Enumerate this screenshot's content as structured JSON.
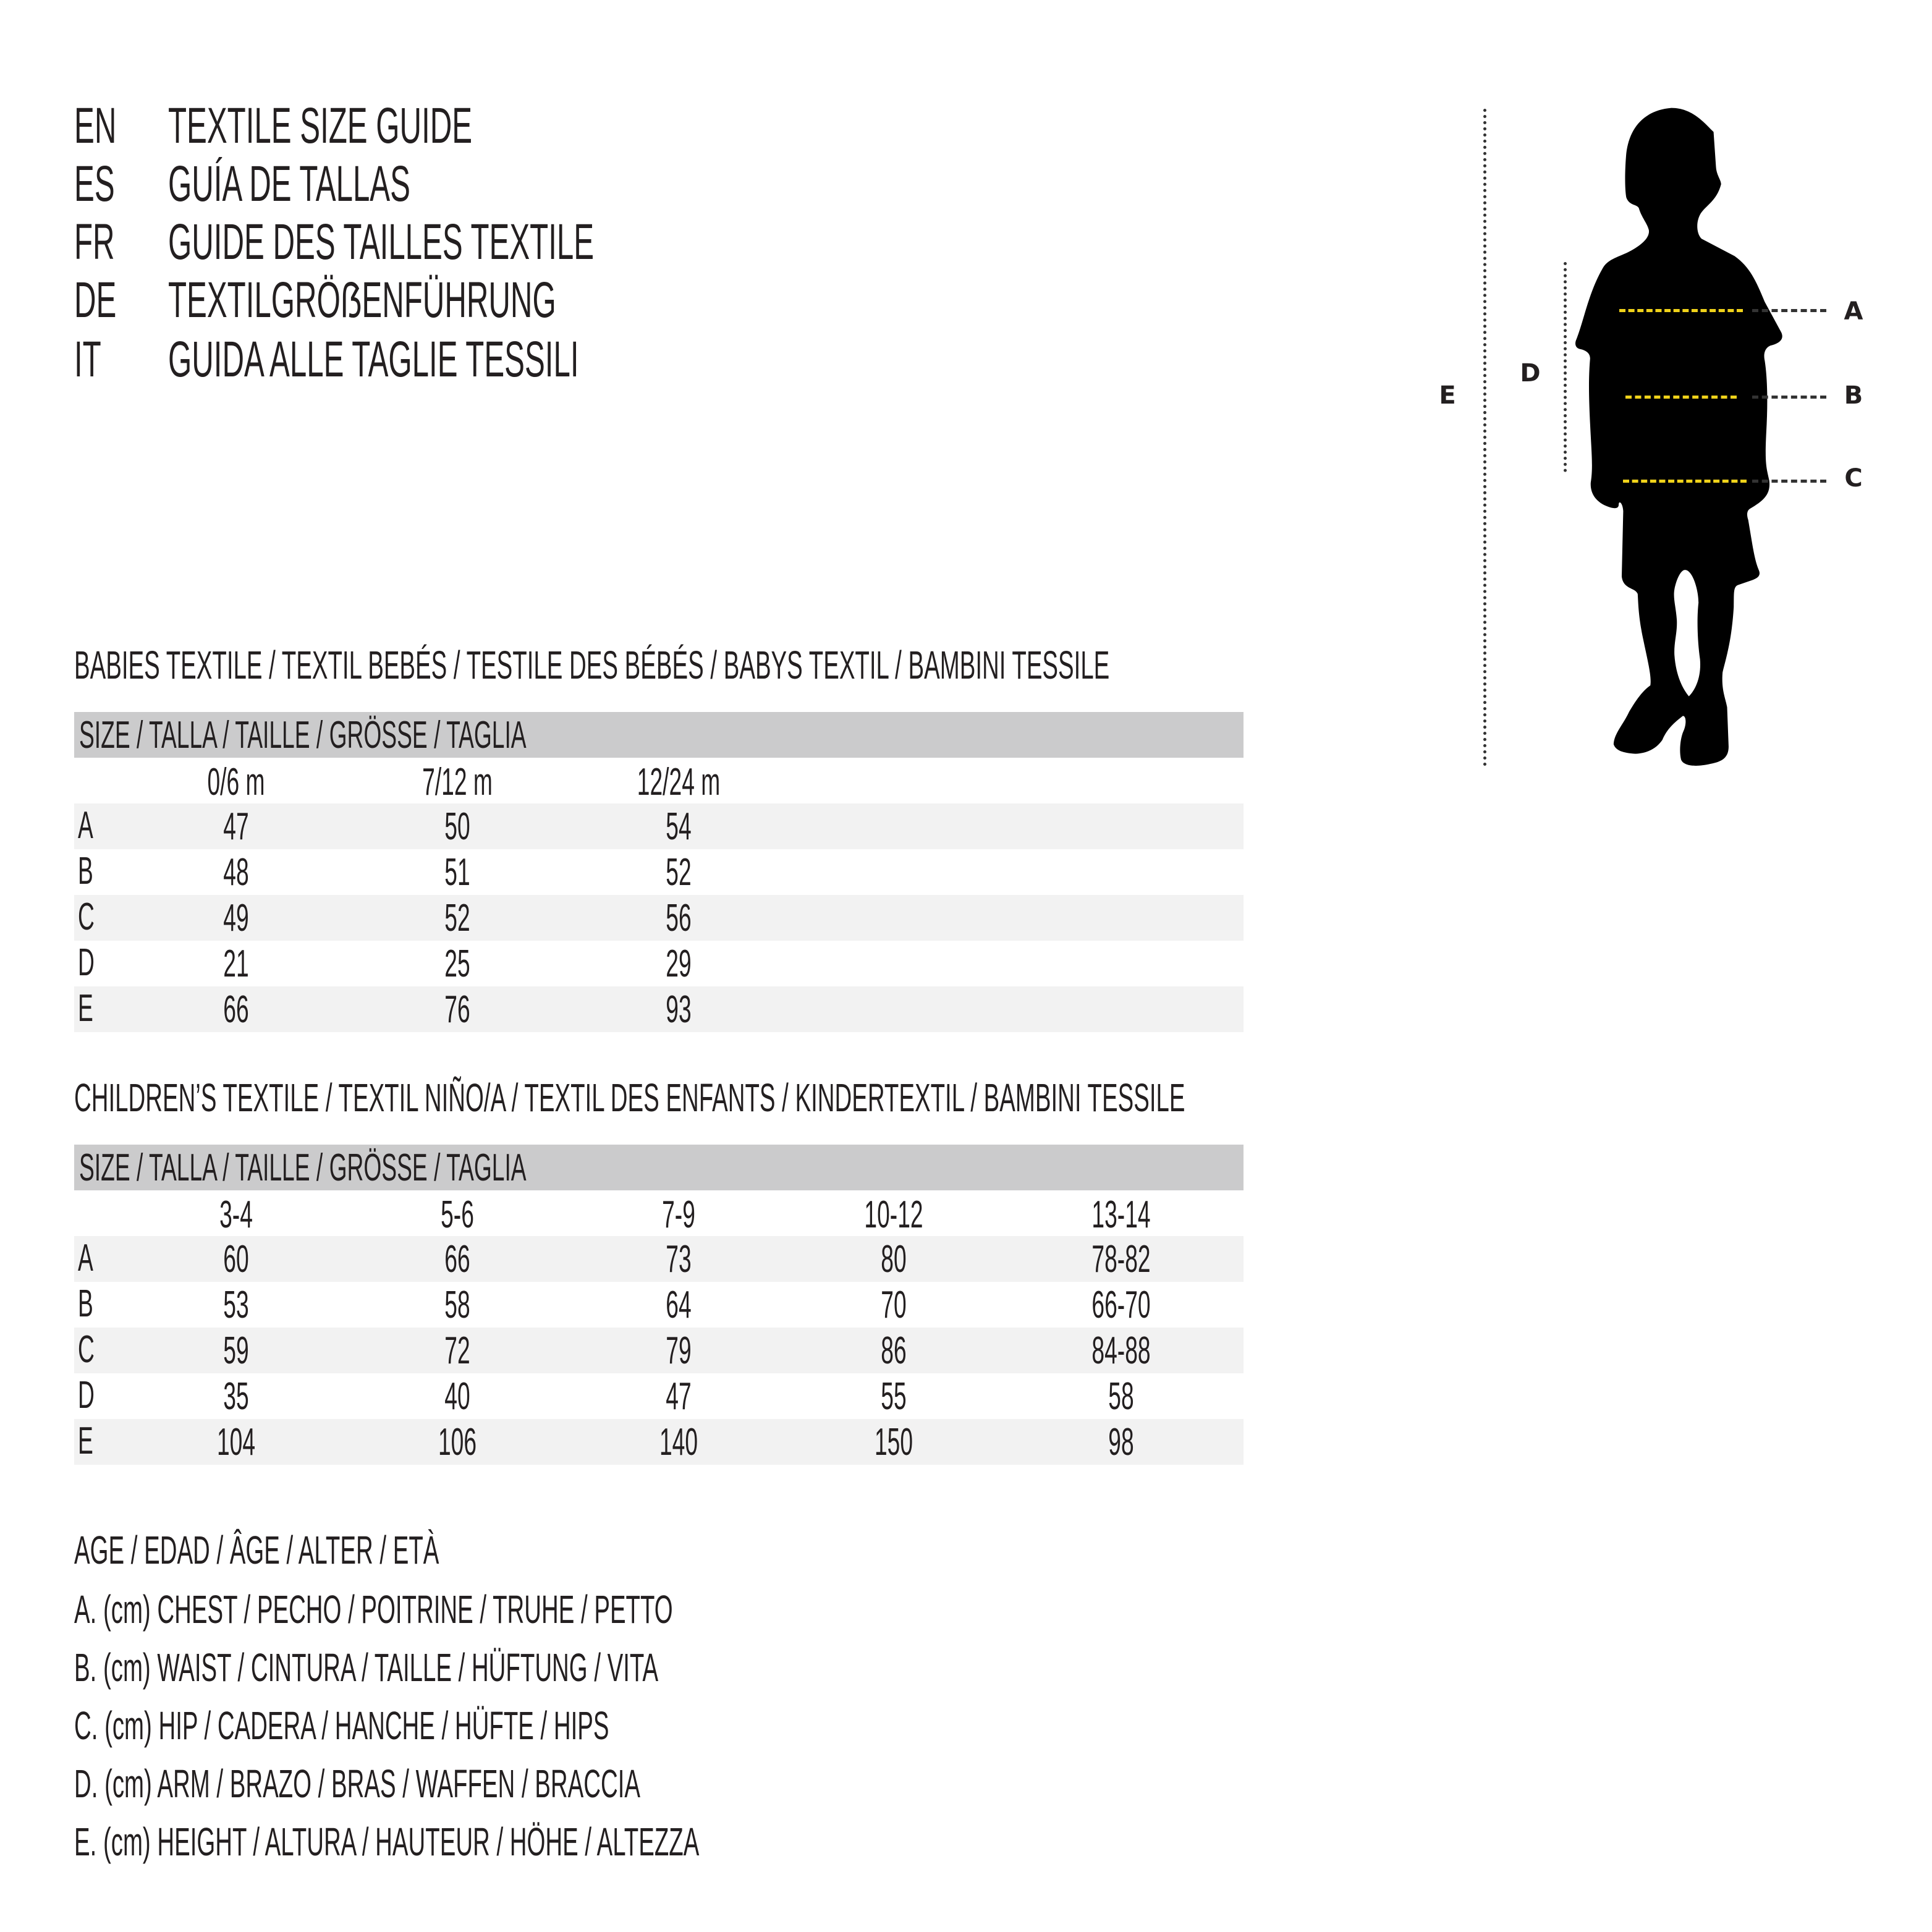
{
  "titles": [
    {
      "code": "EN",
      "text": "TEXTILE SIZE GUIDE"
    },
    {
      "code": "ES",
      "text": "GUÍA DE TALLAS"
    },
    {
      "code": "FR",
      "text": "GUIDE DES TAILLES TEXTILE"
    },
    {
      "code": "DE",
      "text": "TEXTILGRÖẞENFÜHRUNG"
    },
    {
      "code": "IT",
      "text": "GUIDA ALLE TAGLIE TESSILI"
    }
  ],
  "babies": {
    "heading": "BABIES TEXTILE / TEXTIL BEBÉS / TESTILE DES BÉBÉS / BABYS TEXTIL / BAMBINI TESSILE",
    "size_header": "SIZE / TALLA / TAILLE / GRÖSSE / TAGLIA",
    "columns": [
      "0/6 m",
      "7/12 m",
      "12/24 m"
    ],
    "rows": [
      {
        "label": "A",
        "values": [
          "47",
          "50",
          "54"
        ]
      },
      {
        "label": "B",
        "values": [
          "48",
          "51",
          "52"
        ]
      },
      {
        "label": "C",
        "values": [
          "49",
          "52",
          "56"
        ]
      },
      {
        "label": "D",
        "values": [
          "21",
          "25",
          "29"
        ]
      },
      {
        "label": "E",
        "values": [
          "66",
          "76",
          "93"
        ]
      }
    ]
  },
  "children": {
    "heading": "CHILDREN’S TEXTILE / TEXTIL NIÑO/A / TEXTIL DES ENFANTS / KINDERTEXTIL / BAMBINI TESSILE",
    "size_header": "SIZE / TALLA / TAILLE / GRÖSSE / TAGLIA",
    "columns": [
      "3-4",
      "5-6",
      "7-9",
      "10-12",
      "13-14"
    ],
    "rows": [
      {
        "label": "A",
        "values": [
          "60",
          "66",
          "73",
          "80",
          "78-82"
        ]
      },
      {
        "label": "B",
        "values": [
          "53",
          "58",
          "64",
          "70",
          "66-70"
        ]
      },
      {
        "label": "C",
        "values": [
          "59",
          "72",
          "79",
          "86",
          "84-88"
        ]
      },
      {
        "label": "D",
        "values": [
          "35",
          "40",
          "47",
          "55",
          "58"
        ]
      },
      {
        "label": "E",
        "values": [
          "104",
          "106",
          "140",
          "150",
          "98"
        ]
      }
    ]
  },
  "legend": {
    "age": "AGE / EDAD / ÂGE / ALTER / ETÀ",
    "items": [
      "A. (cm) CHEST / PECHO / POITRINE / TRUHE / PETTO",
      "B. (cm) WAIST / CINTURA / TAILLE / HÜFTUNG / VITA",
      "C. (cm) HIP / CADERA / HANCHE / HÜFTE / HIPS",
      "D. (cm) ARM / BRAZO / BRAS / WAFFEN / BRACCIA",
      "E. (cm) HEIGHT / ALTURA / HAUTEUR / HÖHE / ALTEZZA"
    ]
  },
  "figure": {
    "labels": {
      "a": "A",
      "b": "B",
      "c": "C",
      "d": "D",
      "e": "E"
    },
    "colors": {
      "measure_line": "#f0d21a",
      "silhouette": "#000000",
      "header_bar": "#cbcbcc",
      "stripe": "#f2f2f2"
    }
  }
}
